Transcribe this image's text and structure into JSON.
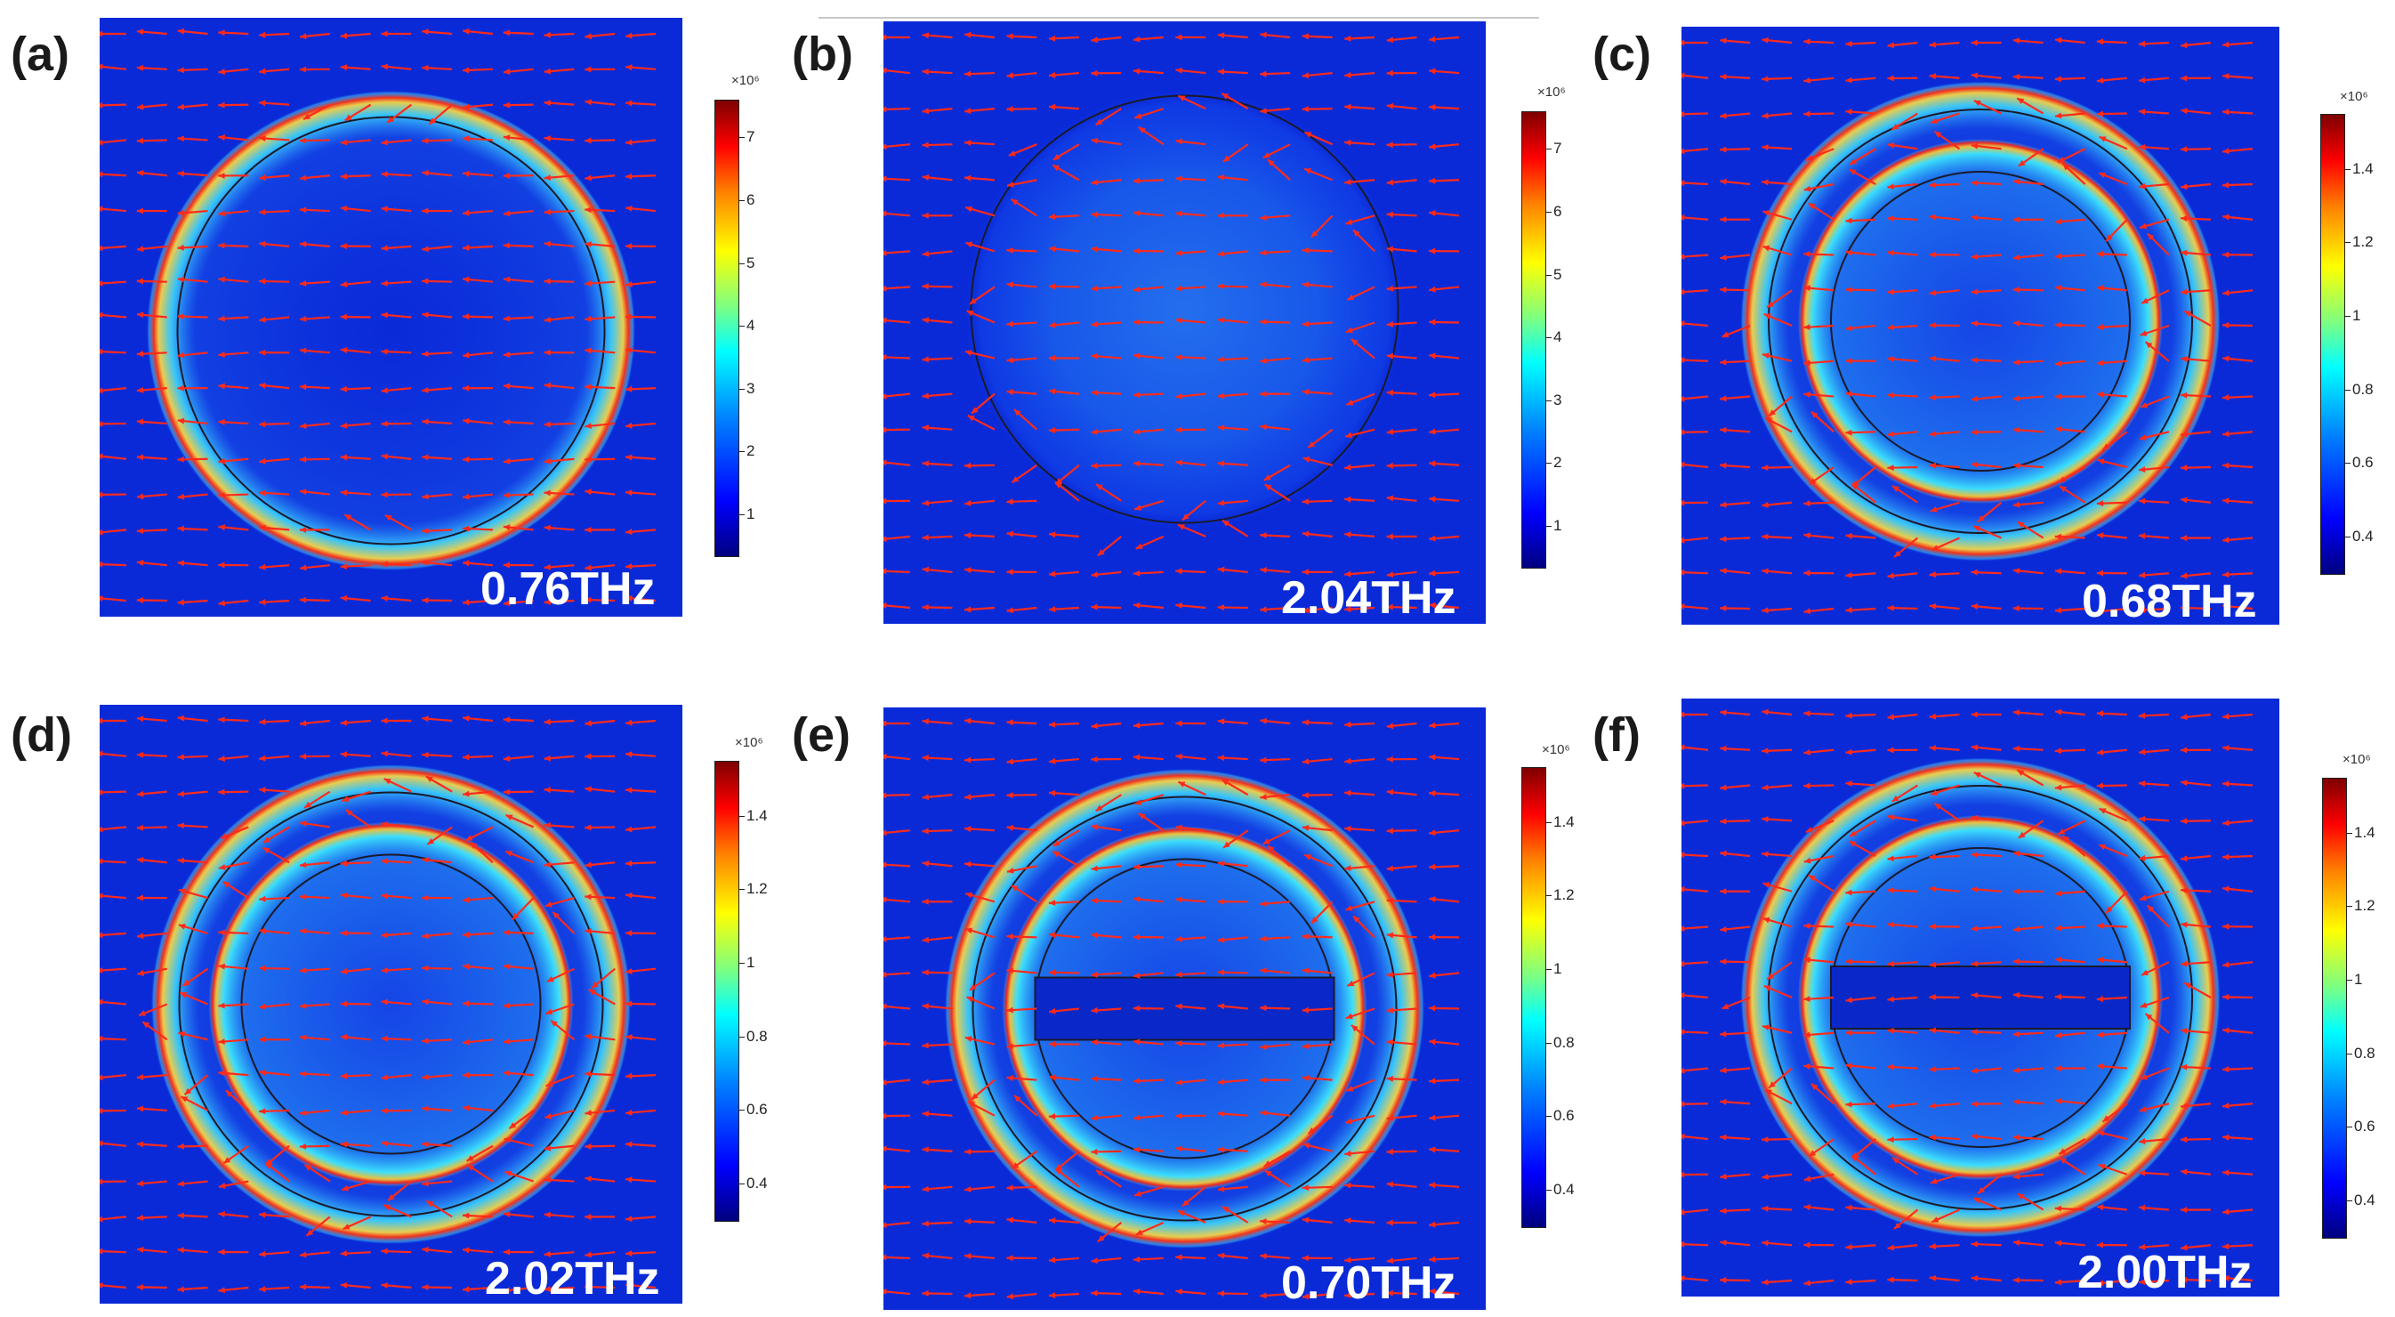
{
  "figure": {
    "panels": [
      {
        "label": "(a)",
        "frequency": "0.76THz",
        "colorbar": {
          "exponent": "×10⁶",
          "ticks": [
            "7",
            "6",
            "5",
            "4",
            "3",
            "2",
            "1"
          ]
        }
      },
      {
        "label": "(b)",
        "frequency": "2.04THz",
        "colorbar": {
          "exponent": "×10⁶",
          "ticks": [
            "7",
            "6",
            "5",
            "4",
            "3",
            "2",
            "1"
          ]
        }
      },
      {
        "label": "(c)",
        "frequency": "0.68THz",
        "colorbar": {
          "exponent": "×10⁶",
          "ticks": [
            "1.4",
            "1.2",
            "1",
            "0.8",
            "0.6",
            "0.4"
          ]
        }
      },
      {
        "label": "(d)",
        "frequency": "2.02THz",
        "colorbar": {
          "exponent": "×10⁶",
          "ticks": [
            "1.4",
            "1.2",
            "1",
            "0.8",
            "0.6",
            "0.4"
          ]
        }
      },
      {
        "label": "(e)",
        "frequency": "0.70THz",
        "colorbar": {
          "exponent": "×10⁶",
          "ticks": [
            "1.4",
            "1.2",
            "1",
            "0.8",
            "0.6",
            "0.4"
          ]
        }
      },
      {
        "label": "(f)",
        "frequency": "2.00THz",
        "colorbar": {
          "exponent": "×10⁶",
          "ticks": [
            "1.4",
            "1.2",
            "1",
            "0.8",
            "0.6",
            "0.4"
          ]
        }
      }
    ]
  },
  "colors": {
    "field_background": "#0a2ad8",
    "arrow": "#ff2a1a",
    "outline": "#1a1a2a"
  }
}
